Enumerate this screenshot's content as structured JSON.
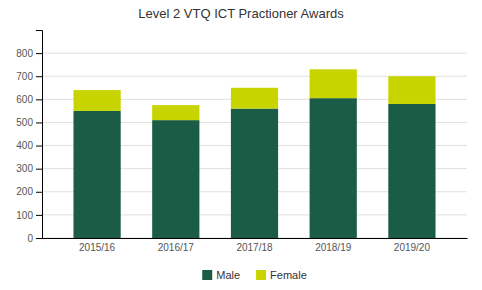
{
  "chart_data": {
    "type": "bar",
    "stacked": true,
    "title": "Level 2 VTQ ICT Practioner Awards",
    "categories": [
      "2015/16",
      "2016/17",
      "2017/18",
      "2018/19",
      "2019/20"
    ],
    "series": [
      {
        "name": "Male",
        "color": "#1a5c45",
        "values": [
          550,
          510,
          560,
          605,
          580
        ]
      },
      {
        "name": "Female",
        "color": "#c8d400",
        "values": [
          90,
          65,
          90,
          125,
          120
        ]
      }
    ],
    "ylim": [
      0,
      900
    ],
    "yticks": [
      0,
      100,
      200,
      300,
      400,
      500,
      600,
      700,
      800
    ],
    "grid": true,
    "legend": "bottom"
  }
}
